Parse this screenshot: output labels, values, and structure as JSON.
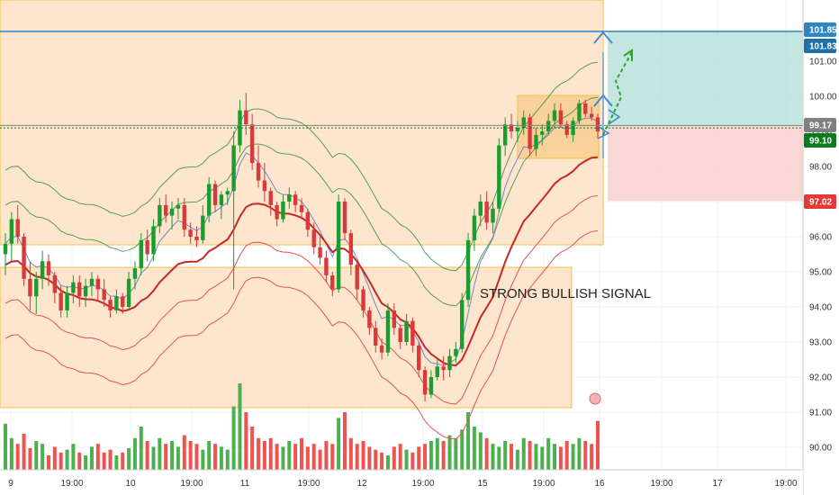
{
  "chart_data": {
    "type": "candlestick",
    "annotations": {
      "signal_text": "STRONG BULLISH SIGNAL"
    },
    "x_tick_labels": [
      "9",
      "19:00",
      "10",
      "19:00",
      "11",
      "19:00",
      "12",
      "19:00",
      "15",
      "19:00",
      "16",
      "19:00",
      "17",
      "19:00"
    ],
    "y_axis": {
      "range": [
        89.4,
        102.2
      ],
      "tick_labels": [
        "90.00",
        "91.00",
        "92.00",
        "93.00",
        "94.00",
        "95.00",
        "96.00",
        "97.00",
        "98.00",
        "99.00",
        "100.00",
        "101.00"
      ],
      "grid": true
    },
    "price_tags": [
      {
        "label": "101.85",
        "color": "#2e86c1"
      },
      {
        "label": "101.83",
        "color": "#1f6fab"
      },
      {
        "label": "99.17",
        "color": "#808080"
      },
      {
        "label": "99.10",
        "color": "#0b7a1f"
      },
      {
        "label": "97.02",
        "color": "#e53935"
      }
    ],
    "levels": {
      "target": 101.85,
      "entry": 99.17,
      "stop": 97.02
    },
    "colors": {
      "up": "#1a9c2e",
      "down": "#d83a3a",
      "vol_up": "#4caf50",
      "vol_down": "#ef5350",
      "zone": "#fde2c4",
      "zone_border": "#f5c04a",
      "profit": "#b5e0da",
      "loss": "#f8d0d0",
      "band_outer": "#e15353",
      "band_mid": "#c62828",
      "band_upper": "#2e8b3c"
    },
    "candles": [
      [
        95.5,
        96.1,
        94.9,
        95.8
      ],
      [
        95.8,
        96.7,
        95.3,
        96.5
      ],
      [
        96.5,
        96.9,
        95.8,
        96.0
      ],
      [
        96.0,
        96.1,
        94.6,
        94.8
      ],
      [
        94.8,
        95.3,
        93.9,
        94.3
      ],
      [
        94.3,
        95.0,
        93.8,
        94.8
      ],
      [
        94.8,
        95.6,
        94.5,
        95.3
      ],
      [
        95.3,
        95.5,
        94.6,
        94.9
      ],
      [
        94.9,
        95.0,
        94.1,
        94.4
      ],
      [
        94.4,
        94.6,
        93.7,
        93.9
      ],
      [
        93.9,
        94.6,
        93.7,
        94.4
      ],
      [
        94.4,
        94.9,
        94.1,
        94.7
      ],
      [
        94.7,
        94.9,
        94.0,
        94.3
      ],
      [
        94.3,
        94.8,
        94.0,
        94.6
      ],
      [
        94.6,
        95.0,
        94.3,
        94.8
      ],
      [
        94.8,
        94.9,
        94.2,
        94.5
      ],
      [
        94.5,
        94.8,
        94.0,
        94.2
      ],
      [
        94.2,
        94.3,
        93.7,
        93.9
      ],
      [
        93.9,
        94.5,
        93.8,
        94.3
      ],
      [
        94.3,
        94.4,
        93.8,
        94.0
      ],
      [
        94.0,
        95.0,
        93.9,
        94.8
      ],
      [
        94.8,
        95.3,
        94.5,
        95.1
      ],
      [
        95.1,
        96.1,
        94.9,
        95.9
      ],
      [
        95.9,
        96.2,
        95.3,
        95.5
      ],
      [
        95.5,
        96.5,
        95.3,
        96.3
      ],
      [
        96.3,
        97.1,
        96.1,
        96.9
      ],
      [
        96.9,
        97.2,
        96.4,
        96.6
      ],
      [
        96.6,
        97.0,
        96.2,
        96.8
      ],
      [
        96.8,
        97.1,
        96.5,
        96.9
      ],
      [
        96.9,
        97.1,
        96.0,
        96.2
      ],
      [
        96.2,
        96.4,
        95.8,
        96.0
      ],
      [
        96.0,
        96.3,
        95.7,
        95.9
      ],
      [
        95.9,
        96.9,
        95.8,
        96.6
      ],
      [
        96.6,
        97.7,
        96.4,
        97.5
      ],
      [
        97.5,
        97.6,
        96.7,
        96.9
      ],
      [
        96.9,
        97.3,
        96.5,
        97.2
      ],
      [
        97.2,
        97.4,
        96.9,
        97.3
      ],
      [
        97.3,
        99.0,
        94.5,
        98.6
      ],
      [
        98.6,
        99.9,
        98.4,
        99.6
      ],
      [
        99.6,
        100.1,
        98.9,
        99.2
      ],
      [
        99.2,
        99.5,
        97.9,
        98.1
      ],
      [
        98.1,
        98.6,
        97.4,
        97.6
      ],
      [
        97.6,
        98.1,
        97.0,
        97.3
      ],
      [
        97.3,
        97.4,
        96.6,
        96.9
      ],
      [
        96.9,
        97.0,
        96.3,
        96.5
      ],
      [
        96.5,
        97.2,
        96.4,
        97.0
      ],
      [
        97.0,
        97.4,
        96.8,
        97.2
      ],
      [
        97.2,
        97.3,
        96.7,
        96.9
      ],
      [
        96.9,
        97.1,
        96.5,
        96.7
      ],
      [
        96.7,
        96.8,
        96.0,
        96.2
      ],
      [
        96.2,
        96.4,
        95.5,
        95.7
      ],
      [
        95.7,
        96.0,
        95.2,
        95.4
      ],
      [
        95.4,
        95.6,
        94.7,
        94.9
      ],
      [
        94.9,
        95.0,
        94.3,
        94.5
      ],
      [
        94.5,
        97.2,
        94.4,
        97.0
      ],
      [
        97.0,
        97.1,
        95.9,
        96.1
      ],
      [
        96.1,
        96.2,
        94.9,
        95.2
      ],
      [
        95.2,
        95.3,
        94.2,
        94.5
      ],
      [
        94.5,
        94.6,
        93.7,
        93.9
      ],
      [
        93.9,
        94.0,
        93.2,
        93.4
      ],
      [
        93.4,
        93.6,
        92.7,
        92.9
      ],
      [
        92.9,
        93.1,
        92.5,
        92.7
      ],
      [
        92.7,
        94.1,
        92.6,
        93.9
      ],
      [
        93.9,
        94.1,
        93.2,
        93.4
      ],
      [
        93.4,
        93.5,
        92.8,
        93.0
      ],
      [
        93.0,
        93.8,
        92.9,
        93.6
      ],
      [
        93.6,
        93.7,
        92.7,
        92.9
      ],
      [
        92.9,
        93.0,
        92.0,
        92.2
      ],
      [
        92.2,
        92.3,
        91.3,
        91.5
      ],
      [
        91.5,
        92.2,
        91.4,
        92.0
      ],
      [
        92.0,
        92.5,
        91.9,
        92.3
      ],
      [
        92.3,
        92.6,
        91.9,
        92.2
      ],
      [
        92.2,
        92.8,
        92.0,
        92.6
      ],
      [
        92.6,
        93.0,
        92.4,
        92.8
      ],
      [
        92.8,
        94.4,
        92.7,
        94.2
      ],
      [
        94.2,
        96.1,
        94.0,
        95.9
      ],
      [
        95.9,
        96.8,
        95.6,
        96.6
      ],
      [
        96.6,
        97.2,
        96.3,
        97.0
      ],
      [
        97.0,
        97.3,
        96.2,
        96.4
      ],
      [
        96.4,
        97.0,
        96.1,
        96.8
      ],
      [
        96.8,
        98.8,
        96.7,
        98.6
      ],
      [
        98.6,
        99.4,
        98.3,
        99.2
      ],
      [
        99.2,
        99.5,
        98.8,
        99.0
      ],
      [
        99.0,
        99.3,
        98.7,
        99.1
      ],
      [
        99.1,
        99.6,
        98.9,
        99.4
      ],
      [
        99.4,
        99.5,
        98.3,
        98.5
      ],
      [
        98.5,
        99.1,
        98.3,
        98.9
      ],
      [
        98.9,
        99.2,
        98.6,
        99.0
      ],
      [
        99.0,
        99.5,
        98.9,
        99.3
      ],
      [
        99.3,
        99.8,
        99.1,
        99.6
      ],
      [
        99.6,
        99.8,
        99.1,
        99.2
      ],
      [
        99.2,
        99.3,
        98.8,
        98.9
      ],
      [
        98.9,
        99.4,
        98.7,
        99.3
      ],
      [
        99.3,
        99.9,
        99.2,
        99.8
      ],
      [
        99.8,
        99.9,
        99.4,
        99.5
      ],
      [
        99.5,
        99.7,
        99.3,
        99.4
      ],
      [
        99.4,
        99.5,
        98.8,
        99.0
      ]
    ],
    "volumes": [
      0.32,
      0.22,
      0.18,
      0.25,
      0.15,
      0.2,
      0.18,
      0.1,
      0.16,
      0.12,
      0.14,
      0.18,
      0.12,
      0.1,
      0.16,
      0.18,
      0.12,
      0.14,
      0.1,
      0.12,
      0.15,
      0.22,
      0.3,
      0.2,
      0.16,
      0.22,
      0.18,
      0.2,
      0.16,
      0.24,
      0.2,
      0.18,
      0.14,
      0.2,
      0.18,
      0.16,
      0.14,
      0.44,
      0.6,
      0.4,
      0.3,
      0.22,
      0.2,
      0.22,
      0.18,
      0.16,
      0.2,
      0.18,
      0.22,
      0.16,
      0.18,
      0.14,
      0.2,
      0.18,
      0.36,
      0.4,
      0.22,
      0.18,
      0.2,
      0.16,
      0.14,
      0.12,
      0.1,
      0.16,
      0.18,
      0.14,
      0.12,
      0.16,
      0.18,
      0.2,
      0.22,
      0.2,
      0.24,
      0.22,
      0.28,
      0.4,
      0.3,
      0.26,
      0.22,
      0.18,
      0.16,
      0.2,
      0.18,
      0.14,
      0.22,
      0.2,
      0.18,
      0.16,
      0.22,
      0.18,
      0.16,
      0.2,
      0.18,
      0.22,
      0.2,
      0.18,
      0.34
    ]
  }
}
